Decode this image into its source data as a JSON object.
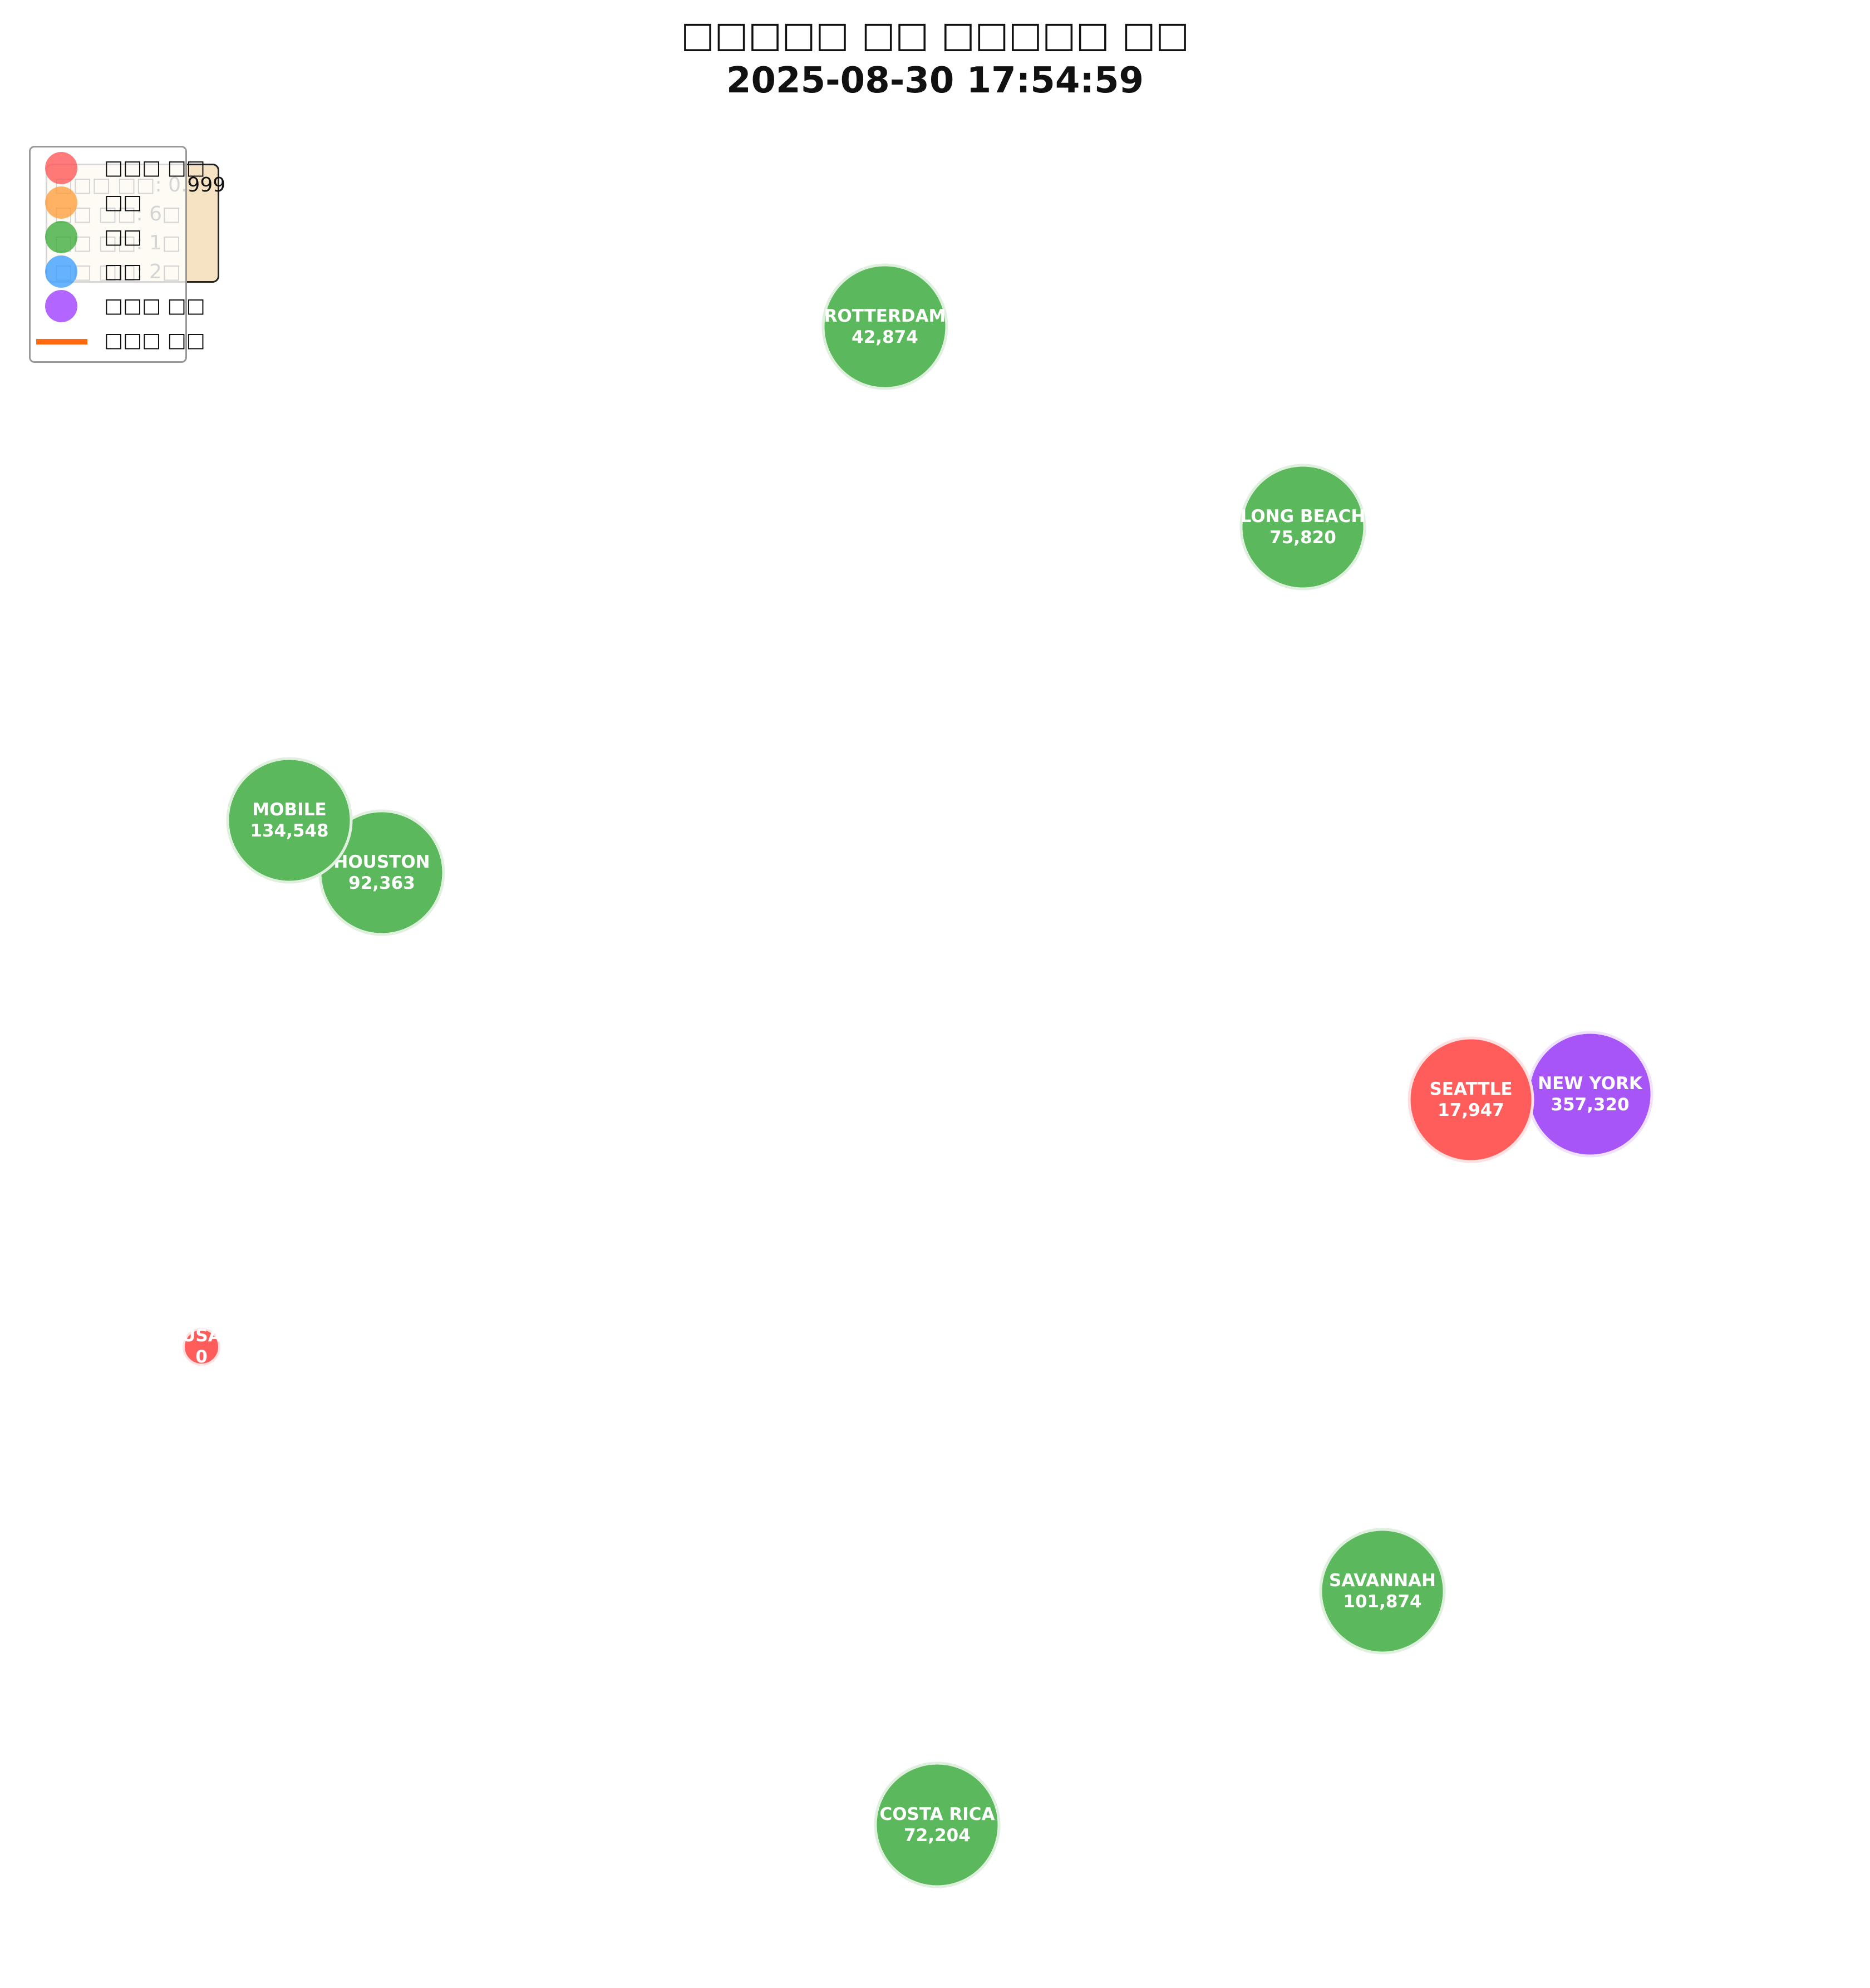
{
  "title": {
    "line1": "□□□□□ □□ □□□□□ □□",
    "line2": "2025-08-30 17:54:59"
  },
  "legend": [
    {
      "label": "□□□ □□",
      "color": "#ff4d4d",
      "kind": "circle"
    },
    {
      "label": "□□",
      "color": "#ff9933",
      "kind": "circle"
    },
    {
      "label": "□□",
      "color": "#33a833",
      "kind": "circle"
    },
    {
      "label": "□□",
      "color": "#3399ff",
      "kind": "circle"
    },
    {
      "label": "□□□ □□",
      "color": "#9933ff",
      "kind": "circle"
    },
    {
      "label": "□□□ □□",
      "color": "#ff6a13",
      "kind": "line"
    }
  ],
  "stats": [
    "□□□ □□: 0.999",
    "□□ □□: 6□",
    "□□ □□: 1□",
    "□□ □□: 2□"
  ],
  "nodes": [
    {
      "name": "ROTTERDAM",
      "value": "42,874",
      "color": "#5cb85c"
    },
    {
      "name": "LONG BEACH",
      "value": "75,820",
      "color": "#5cb85c"
    },
    {
      "name": "MOBILE",
      "value": "134,548",
      "color": "#5cb85c"
    },
    {
      "name": "HOUSTON",
      "value": "92,363",
      "color": "#5cb85c"
    },
    {
      "name": "SEATTLE",
      "value": "17,947",
      "color": "#ff5c5c"
    },
    {
      "name": "NEW YORK",
      "value": "357,320",
      "color": "#a855f7"
    },
    {
      "name": "USA",
      "value": "0",
      "color": "#ff5c5c"
    },
    {
      "name": "SAVANNAH",
      "value": "101,874",
      "color": "#5cb85c"
    },
    {
      "name": "COSTA RICA",
      "value": "72,204",
      "color": "#5cb85c"
    }
  ]
}
